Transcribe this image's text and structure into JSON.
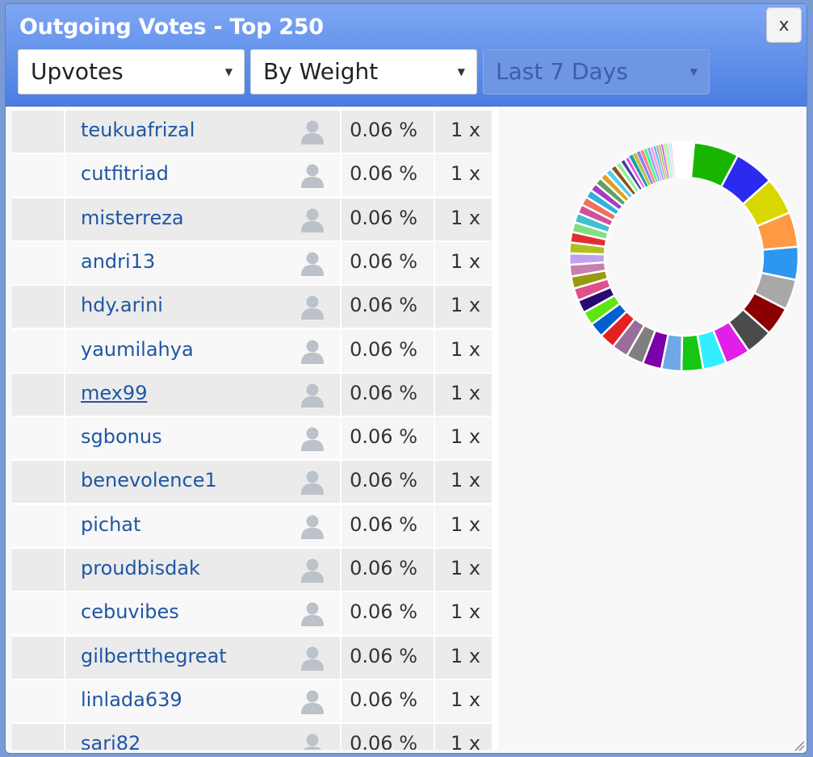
{
  "dialog": {
    "title": "Outgoing Votes - Top 250",
    "close_label": "x"
  },
  "filters": {
    "type": "Upvotes",
    "sort": "By Weight",
    "period": "Last 7 Days"
  },
  "rows": [
    {
      "name": "teukuafrizal",
      "pct": "0.06 %",
      "count": "1 x"
    },
    {
      "name": "cutfitriad",
      "pct": "0.06 %",
      "count": "1 x"
    },
    {
      "name": "misterreza",
      "pct": "0.06 %",
      "count": "1 x"
    },
    {
      "name": "andri13",
      "pct": "0.06 %",
      "count": "1 x"
    },
    {
      "name": "hdy.arini",
      "pct": "0.06 %",
      "count": "1 x"
    },
    {
      "name": "yaumilahya",
      "pct": "0.06 %",
      "count": "1 x"
    },
    {
      "name": "mex99",
      "pct": "0.06 %",
      "count": "1 x"
    },
    {
      "name": "sgbonus",
      "pct": "0.06 %",
      "count": "1 x"
    },
    {
      "name": "benevolence1",
      "pct": "0.06 %",
      "count": "1 x"
    },
    {
      "name": "pichat",
      "pct": "0.06 %",
      "count": "1 x"
    },
    {
      "name": "proudbisdak",
      "pct": "0.06 %",
      "count": "1 x"
    },
    {
      "name": "cebuvibes",
      "pct": "0.06 %",
      "count": "1 x"
    },
    {
      "name": "gilbertthegreat",
      "pct": "0.06 %",
      "count": "1 x"
    },
    {
      "name": "linlada639",
      "pct": "0.06 %",
      "count": "1 x"
    },
    {
      "name": "sari82",
      "pct": "0.06 %",
      "count": "1 x"
    }
  ],
  "hovered_row": 6,
  "chart_data": {
    "type": "pie",
    "style": "donut",
    "segment_count": 56,
    "segments": [
      {
        "value": 5.2,
        "color": "#19b400"
      },
      {
        "value": 4.6,
        "color": "#2b2bf0"
      },
      {
        "value": 4.3,
        "color": "#d8d800"
      },
      {
        "value": 4.0,
        "color": "#ff9944"
      },
      {
        "value": 3.8,
        "color": "#2d96f0"
      },
      {
        "value": 3.5,
        "color": "#a8a8a8"
      },
      {
        "value": 3.3,
        "color": "#8a0000"
      },
      {
        "value": 3.1,
        "color": "#4b4b4b"
      },
      {
        "value": 2.9,
        "color": "#e020e8"
      },
      {
        "value": 2.7,
        "color": "#33eeff"
      },
      {
        "value": 2.5,
        "color": "#15c615"
      },
      {
        "value": 2.3,
        "color": "#6fa8e6"
      },
      {
        "value": 2.2,
        "color": "#7a00a8"
      },
      {
        "value": 2.0,
        "color": "#7f7f7f"
      },
      {
        "value": 1.9,
        "color": "#9a6e9a"
      },
      {
        "value": 1.8,
        "color": "#e52020"
      },
      {
        "value": 1.7,
        "color": "#0060d0"
      },
      {
        "value": 1.6,
        "color": "#5ce80e"
      },
      {
        "value": 1.5,
        "color": "#2b0a70"
      },
      {
        "value": 1.45,
        "color": "#e0508a"
      },
      {
        "value": 1.4,
        "color": "#9a9a10"
      },
      {
        "value": 1.35,
        "color": "#c87fb0"
      },
      {
        "value": 1.3,
        "color": "#c0a0f0"
      },
      {
        "value": 1.25,
        "color": "#b0c020"
      },
      {
        "value": 1.2,
        "color": "#e03030"
      },
      {
        "value": 1.15,
        "color": "#80e080"
      },
      {
        "value": 1.1,
        "color": "#40c0d0"
      },
      {
        "value": 1.05,
        "color": "#d050a0"
      },
      {
        "value": 1.0,
        "color": "#f07060"
      },
      {
        "value": 0.95,
        "color": "#30b0e0"
      },
      {
        "value": 0.9,
        "color": "#a040c0"
      },
      {
        "value": 0.85,
        "color": "#60a060"
      },
      {
        "value": 0.8,
        "color": "#e0a020"
      },
      {
        "value": 0.75,
        "color": "#50d0f0"
      },
      {
        "value": 0.7,
        "color": "#905020"
      },
      {
        "value": 0.65,
        "color": "#90f090"
      },
      {
        "value": 0.6,
        "color": "#4040a0"
      },
      {
        "value": 0.55,
        "color": "#f050f0"
      },
      {
        "value": 0.5,
        "color": "#20a0a0"
      },
      {
        "value": 0.48,
        "color": "#c0c040"
      },
      {
        "value": 0.45,
        "color": "#8080ff"
      },
      {
        "value": 0.42,
        "color": "#ff8080"
      },
      {
        "value": 0.4,
        "color": "#40ff80"
      },
      {
        "value": 0.38,
        "color": "#a0a0ff"
      },
      {
        "value": 0.35,
        "color": "#ffa0d0"
      },
      {
        "value": 0.33,
        "color": "#60c0ff"
      },
      {
        "value": 0.3,
        "color": "#d0a0a0"
      },
      {
        "value": 0.28,
        "color": "#a0d060"
      },
      {
        "value": 0.26,
        "color": "#c060ff"
      },
      {
        "value": 0.24,
        "color": "#ffd060"
      },
      {
        "value": 0.22,
        "color": "#60ffd0"
      },
      {
        "value": 0.2,
        "color": "#d0d0d0"
      },
      {
        "value": 0.18,
        "color": "#b0e0ff"
      },
      {
        "value": 0.16,
        "color": "#ffb0b0"
      },
      {
        "value": 0.14,
        "color": "#e0e0a0"
      },
      {
        "value": 2.4,
        "color": "#ffffff"
      }
    ]
  }
}
